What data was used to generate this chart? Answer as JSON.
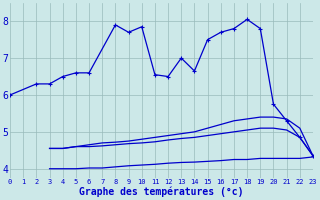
{
  "x": [
    0,
    1,
    2,
    3,
    4,
    5,
    6,
    7,
    8,
    9,
    10,
    11,
    12,
    13,
    14,
    15,
    16,
    17,
    18,
    19,
    20,
    21,
    22,
    23
  ],
  "line_main": [
    6.0,
    null,
    6.3,
    6.3,
    6.5,
    6.6,
    6.6,
    null,
    7.9,
    7.7,
    7.85,
    6.55,
    6.5,
    7.0,
    6.65,
    7.5,
    7.7,
    7.8,
    8.05,
    7.8,
    5.75,
    5.3,
    4.85,
    4.35
  ],
  "line_upper_mid": [
    null,
    null,
    null,
    4.55,
    4.55,
    4.6,
    4.65,
    4.7,
    4.72,
    4.75,
    4.8,
    4.85,
    4.9,
    4.95,
    5.0,
    5.1,
    5.2,
    5.3,
    5.35,
    5.4,
    5.4,
    5.35,
    5.1,
    4.35
  ],
  "line_lower_mid": [
    null,
    null,
    null,
    4.55,
    4.55,
    4.6,
    4.6,
    4.62,
    4.65,
    4.68,
    4.7,
    4.73,
    4.78,
    4.82,
    4.85,
    4.9,
    4.95,
    5.0,
    5.05,
    5.1,
    5.1,
    5.05,
    4.85,
    4.35
  ],
  "line_bottom": [
    null,
    null,
    null,
    4.0,
    4.0,
    4.0,
    4.02,
    4.02,
    4.05,
    4.08,
    4.1,
    4.12,
    4.15,
    4.17,
    4.18,
    4.2,
    4.22,
    4.25,
    4.25,
    4.28,
    4.28,
    4.28,
    4.28,
    4.32
  ],
  "ylabel_ticks": [
    4,
    5,
    6,
    7,
    8
  ],
  "xlabel_labels": [
    "0",
    "1",
    "2",
    "3",
    "4",
    "5",
    "6",
    "7",
    "8",
    "9",
    "10",
    "11",
    "12",
    "13",
    "14",
    "15",
    "16",
    "17",
    "18",
    "19",
    "20",
    "21",
    "22",
    "23"
  ],
  "xlabel": "Graphe des températures (°c)",
  "bg_color": "#cce8e8",
  "line_color": "#0000cc",
  "grid_color": "#99bbbb",
  "axis_label_color": "#0000cc",
  "ylim": [
    3.75,
    8.5
  ],
  "xlim": [
    0,
    23
  ]
}
